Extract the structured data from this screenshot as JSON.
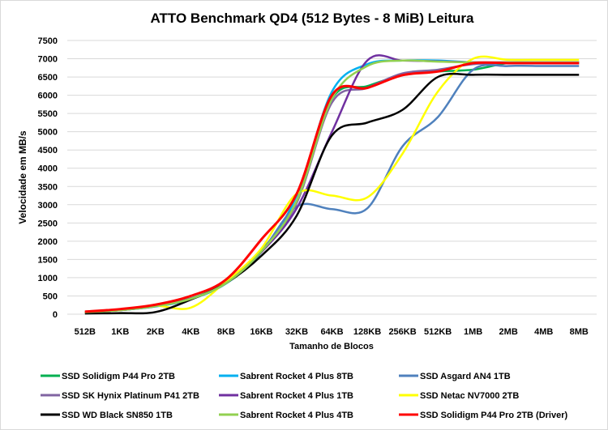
{
  "chart_data": {
    "type": "line",
    "title": "ATTO Benchmark QD4 (512 Bytes - 8 MiB) Leitura",
    "xlabel": "Tamanho de Blocos",
    "ylabel": "Velocidade em MB/s",
    "ylim": [
      0,
      7500
    ],
    "yticks": [
      0,
      500,
      1000,
      1500,
      2000,
      2500,
      3000,
      3500,
      4000,
      4500,
      5000,
      5500,
      6000,
      6500,
      7000,
      7500
    ],
    "grid": true,
    "legend": "bottom",
    "categories": [
      "512B",
      "1KB",
      "2KB",
      "4KB",
      "8KB",
      "16KB",
      "32KB",
      "64KB",
      "128KB",
      "256KB",
      "512KB",
      "1MB",
      "2MB",
      "4MB",
      "8MB"
    ],
    "series": [
      {
        "name": "SSD Solidigm P44 Pro 2TB",
        "color": "#00B050",
        "values": [
          65,
          120,
          230,
          430,
          870,
          1750,
          3100,
          5900,
          6250,
          6550,
          6650,
          6700,
          6880,
          6880,
          6880
        ]
      },
      {
        "name": "Sabrent Rocket 4 Plus 8TB",
        "color": "#00B0F0",
        "values": [
          55,
          110,
          210,
          410,
          840,
          1700,
          3250,
          6100,
          6850,
          6950,
          6950,
          6900,
          6900,
          6900,
          6900
        ]
      },
      {
        "name": "SSD Asgard AN4 1TB",
        "color": "#4F81BD",
        "values": [
          55,
          110,
          220,
          420,
          860,
          1720,
          2950,
          2880,
          2900,
          4600,
          5400,
          6700,
          6800,
          6800,
          6800
        ]
      },
      {
        "name": "SSD SK Hynix Platinum P41 2TB",
        "color": "#8064A2",
        "values": [
          60,
          115,
          225,
          425,
          860,
          1740,
          3050,
          5800,
          6200,
          6600,
          6700,
          6850,
          6880,
          6880,
          6880
        ]
      },
      {
        "name": "Sabrent Rocket 4 Plus 1TB",
        "color": "#7030A0",
        "values": [
          55,
          110,
          220,
          420,
          850,
          1700,
          2900,
          5000,
          6950,
          6950,
          6930,
          6900,
          6900,
          6900,
          6900
        ]
      },
      {
        "name": "SSD Netac NV7000 2TB",
        "color": "#FFFF00",
        "values": [
          55,
          110,
          230,
          180,
          900,
          1800,
          3300,
          3250,
          3200,
          4400,
          6100,
          7000,
          6970,
          6970,
          6970
        ]
      },
      {
        "name": "SSD WD Black SN850 1TB",
        "color": "#000000",
        "values": [
          20,
          30,
          60,
          400,
          850,
          1600,
          2700,
          4900,
          5250,
          5600,
          6500,
          6560,
          6560,
          6560,
          6560
        ]
      },
      {
        "name": "Sabrent Rocket 4 Plus 4TB",
        "color": "#92D050",
        "values": [
          55,
          110,
          220,
          420,
          850,
          1720,
          3100,
          5900,
          6800,
          6950,
          6920,
          6900,
          6900,
          6900,
          6900
        ]
      },
      {
        "name": "SSD Solidigm P44 Pro 2TB (Driver)",
        "color": "#FF0000",
        "values": [
          70,
          140,
          260,
          500,
          950,
          2050,
          3300,
          6000,
          6200,
          6550,
          6650,
          6880,
          6880,
          6880,
          6880
        ]
      }
    ]
  }
}
